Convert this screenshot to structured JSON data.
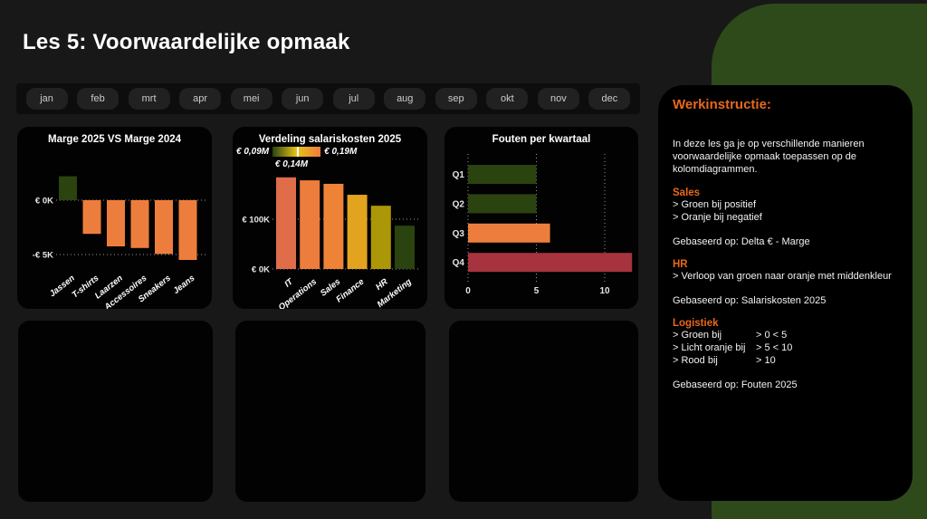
{
  "page": {
    "title": "Les 5: Voorwaardelijke opmaak"
  },
  "month_bar": {
    "items": [
      "jan",
      "feb",
      "mrt",
      "apr",
      "mei",
      "jun",
      "jul",
      "aug",
      "sep",
      "okt",
      "nov",
      "dec"
    ]
  },
  "colors": {
    "background": "#181818",
    "card": "#020202",
    "panel_green": "#2e4a1b",
    "heading_orange": "#e8681c",
    "positive_green": "#2a430f",
    "negative_orange": "#ed7d3c",
    "error_red": "#a7333f",
    "gridline": "#9a9a9a"
  },
  "chart_data": [
    {
      "type": "bar",
      "title": "Marge 2025 VS Marge 2024",
      "categories": [
        "Jassen",
        "T-shirts",
        "Laarzen",
        "Accessoires",
        "Sneakers",
        "Jeans"
      ],
      "values": [
        2200,
        -3100,
        -4250,
        -4400,
        -4950,
        -5500
      ],
      "colors": [
        "#2a430f",
        "#ed7d3c",
        "#ed7d3c",
        "#ed7d3c",
        "#ed7d3c",
        "#ed7d3c"
      ],
      "ylabel": "",
      "xlabel": "",
      "ytick_values": [
        0,
        -5000
      ],
      "ytick_labels": [
        "€ 0K",
        "-€ 5K"
      ],
      "ylim": [
        -5800,
        2800
      ],
      "grid": "dotted horizontal"
    },
    {
      "type": "bar",
      "title": "Verdeling salariskosten 2025",
      "categories": [
        "IT",
        "Operations",
        "Sales",
        "Finance",
        "HR",
        "Marketing"
      ],
      "values": [
        184000,
        178000,
        171000,
        149000,
        127000,
        87000
      ],
      "colors": [
        "#df6d4a",
        "#ed7d3c",
        "#ee8338",
        "#e2a41e",
        "#ac9708",
        "#2a430f"
      ],
      "ylabel": "",
      "xlabel": "",
      "ytick_values": [
        100000,
        0
      ],
      "ytick_labels": [
        "€ 100K",
        "€ 0K"
      ],
      "ylim": [
        0,
        200000
      ],
      "grid": "dotted horizontal",
      "legend": {
        "min_label": "€ 0,09M",
        "mid_label": "€ 0,14M",
        "max_label": "€ 0,19M",
        "gradient": [
          "#2a430f",
          "#e6c417",
          "#ed7d3c"
        ]
      }
    },
    {
      "type": "bar-horizontal",
      "title": "Fouten per kwartaal",
      "categories": [
        "Q1",
        "Q2",
        "Q3",
        "Q4"
      ],
      "values": [
        5,
        5,
        6,
        12
      ],
      "colors": [
        "#2a430f",
        "#2a430f",
        "#ed7d3c",
        "#a7333f"
      ],
      "xticks": [
        0,
        5,
        10
      ],
      "xtick_labels": [
        "0",
        "5",
        "10"
      ],
      "xlim": [
        0,
        13
      ],
      "grid": "dotted vertical"
    }
  ],
  "instruction_panel": {
    "title": "Werkinstructie:",
    "intro": "In deze les ga je op verschillende manieren voorwaardelijke opmaak toepassen op de kolomdiagrammen.",
    "sections": [
      {
        "heading": "Sales",
        "lines": [
          "> Groen bij positief",
          "> Oranje bij negatief"
        ],
        "based_on": "Gebaseerd op: Delta € - Marge"
      },
      {
        "heading": "HR",
        "lines": [
          "> Verloop van groen naar oranje met middenkleur"
        ],
        "based_on": "Gebaseerd op: Salariskosten 2025"
      },
      {
        "heading": "Logistiek",
        "rules": [
          [
            "> Groen bij",
            "> 0 < 5"
          ],
          [
            "> Licht oranje bij",
            "> 5 < 10"
          ],
          [
            "> Rood bij",
            "> 10"
          ]
        ],
        "based_on": "Gebaseerd op: Fouten 2025"
      }
    ]
  }
}
